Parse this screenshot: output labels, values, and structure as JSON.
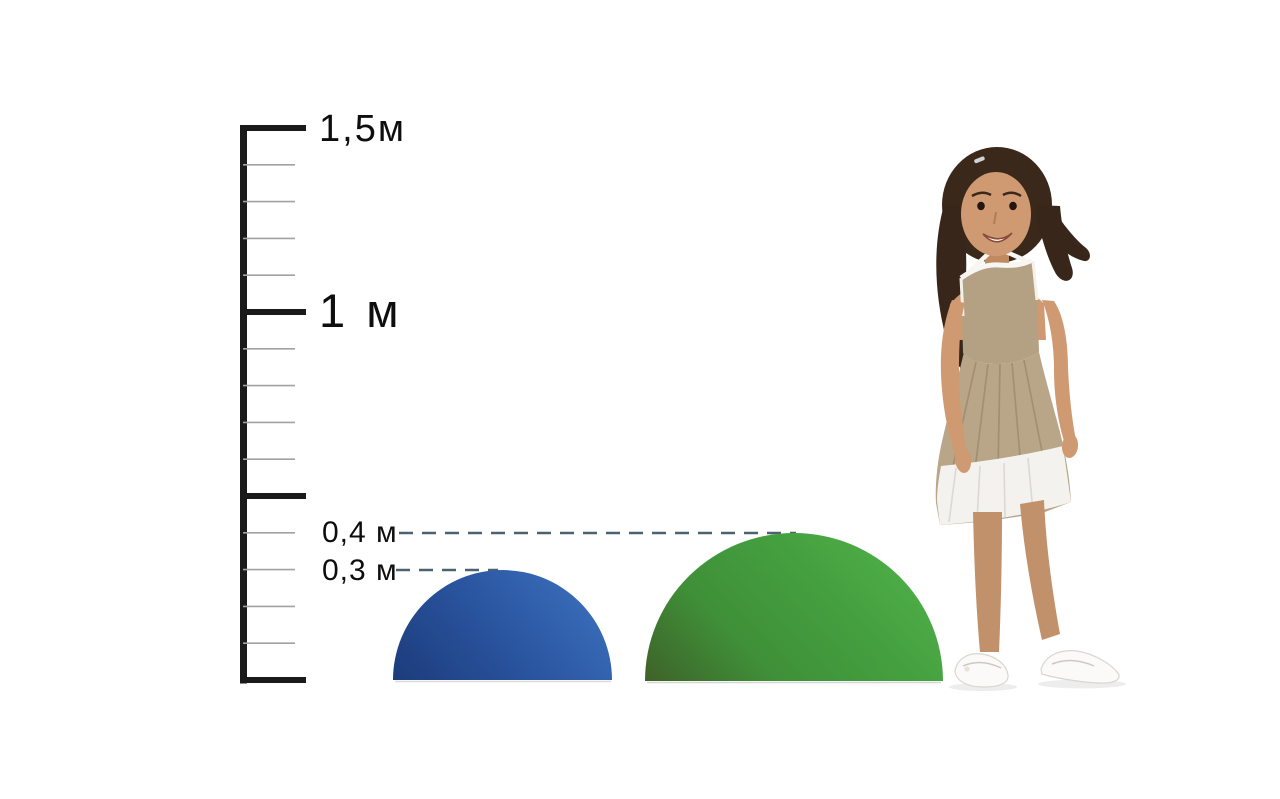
{
  "diagram": {
    "type": "size-comparison",
    "unit": "м"
  },
  "ruler": {
    "min_m": 0,
    "max_m": 1.5,
    "major_step_m": 0.5,
    "minor_step_m": 0.1,
    "labels": {
      "l15": "1,5м",
      "l10": "1 м",
      "l04": "0,4 м",
      "l03": "0,3 м"
    }
  },
  "guides": [
    {
      "label": "0,4 м",
      "height_m": 0.4,
      "points_to": "green-dome"
    },
    {
      "label": "0,3 м",
      "height_m": 0.3,
      "points_to": "blue-dome"
    }
  ],
  "objects": {
    "blue_dome": {
      "description": "blue hemisphere dome",
      "height_label": "0,3 м",
      "color": "#2b57a3"
    },
    "green_dome": {
      "description": "green hemisphere dome",
      "height_label": "0,4 м",
      "color": "#3f9a3c"
    },
    "girl": {
      "description": "girl standing for scale, beige halter dress with white hem, white ballet flats"
    }
  },
  "colors": {
    "background": "#ffffff",
    "ruler": "#1a1a1a",
    "minor_tick": "#a2a2a2",
    "guide_line": "#4d6270",
    "blue_dome": "#2b57a3",
    "green_dome": "#3f9a3c"
  }
}
